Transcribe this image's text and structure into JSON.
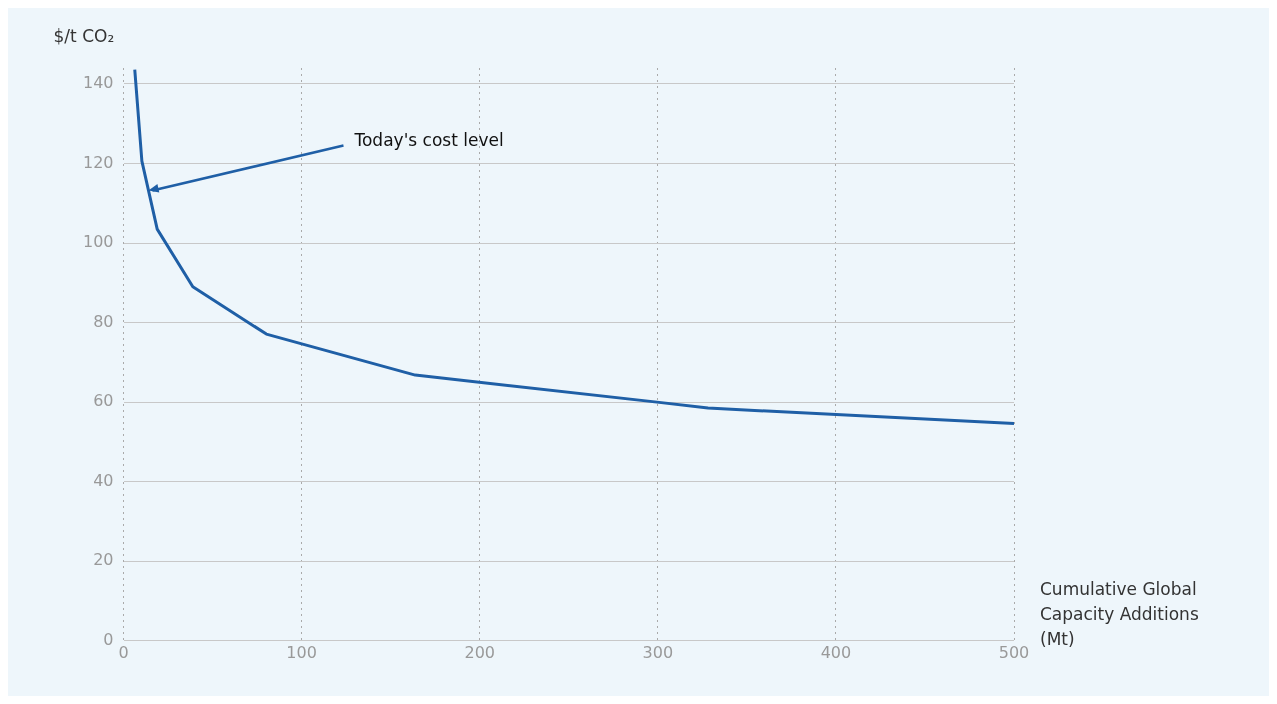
{
  "chart_data": {
    "type": "line",
    "ylabel": "$/t CO₂",
    "xlabel": "Cumulative Global Capacity Additions (Mt)",
    "x": [
      6.3,
      10.3,
      18.9,
      38.9,
      80.2,
      163.8,
      299.5,
      328.2,
      500
    ],
    "series": [
      {
        "color": "#1f5fa6",
        "values": [
          143.6,
          120.6,
          103.5,
          89.0,
          77.1,
          66.8,
          60.0,
          58.5,
          54.6
        ]
      }
    ],
    "xlim": [
      0,
      500
    ],
    "xticks": [
      0,
      100,
      200,
      300,
      400,
      500
    ],
    "ylim": [
      0,
      144
    ],
    "yticks": [
      0,
      20,
      40,
      60,
      80,
      100,
      120,
      140
    ],
    "grid": true,
    "marker": "none",
    "line_style": "solid",
    "legend": false,
    "annotations": [
      {
        "text": "Today's cost level",
        "x": 14,
        "y": 113.2
      }
    ]
  }
}
